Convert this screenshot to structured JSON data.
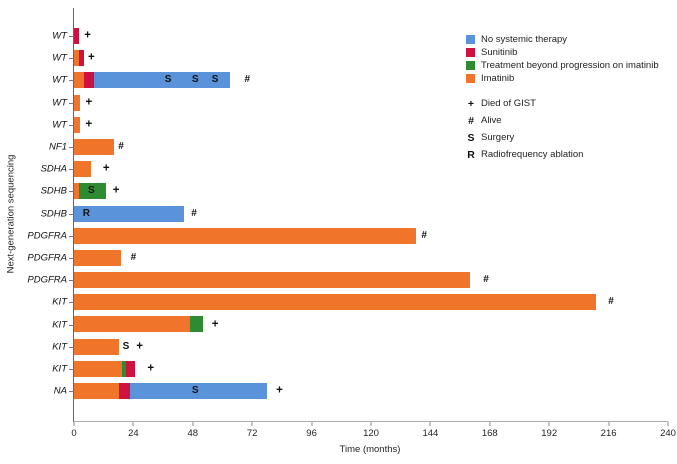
{
  "chart_data": {
    "type": "bar",
    "orientation": "horizontal_stacked_swimmer",
    "xlabel": "Time (months)",
    "ylabel": "Next-generation sequencing",
    "xlim": [
      0,
      240
    ],
    "xticks": [
      0,
      24,
      48,
      72,
      96,
      120,
      144,
      168,
      192,
      216,
      240
    ],
    "grid": false,
    "legend_position": "upper right",
    "colors": {
      "No systemic therapy": "#5B93DB",
      "Sunitinib": "#CF1240",
      "Treatment beyond progression on imatinib": "#2E8B32",
      "Imatinib": "#F0752B"
    },
    "rows": [
      {
        "label": "WT",
        "segments": [
          {
            "therapy": "Sunitinib",
            "start": 0,
            "end": 2
          }
        ],
        "markers": [
          {
            "symbol": "+",
            "month": 5.5
          }
        ]
      },
      {
        "label": "WT",
        "segments": [
          {
            "therapy": "Imatinib",
            "start": 0,
            "end": 2
          },
          {
            "therapy": "Sunitinib",
            "start": 2,
            "end": 4
          }
        ],
        "markers": [
          {
            "symbol": "+",
            "month": 7
          }
        ]
      },
      {
        "label": "WT",
        "segments": [
          {
            "therapy": "Imatinib",
            "start": 0,
            "end": 4
          },
          {
            "therapy": "Sunitinib",
            "start": 4,
            "end": 8
          },
          {
            "therapy": "No systemic therapy",
            "start": 8,
            "end": 63
          }
        ],
        "markers": [
          {
            "symbol": "S",
            "month": 38
          },
          {
            "symbol": "S",
            "month": 49
          },
          {
            "symbol": "S",
            "month": 57
          },
          {
            "symbol": "#",
            "month": 70
          }
        ]
      },
      {
        "label": "WT",
        "segments": [
          {
            "therapy": "Imatinib",
            "start": 0,
            "end": 2.5
          }
        ],
        "markers": [
          {
            "symbol": "+",
            "month": 6
          }
        ]
      },
      {
        "label": "WT",
        "segments": [
          {
            "therapy": "Imatinib",
            "start": 0,
            "end": 2.5
          }
        ],
        "markers": [
          {
            "symbol": "+",
            "month": 6
          }
        ]
      },
      {
        "label": "NF1",
        "segments": [
          {
            "therapy": "Imatinib",
            "start": 0,
            "end": 16
          }
        ],
        "markers": [
          {
            "symbol": "#",
            "month": 19
          }
        ]
      },
      {
        "label": "SDHA",
        "segments": [
          {
            "therapy": "Imatinib",
            "start": 0,
            "end": 7
          }
        ],
        "markers": [
          {
            "symbol": "+",
            "month": 13
          }
        ]
      },
      {
        "label": "SDHB",
        "segments": [
          {
            "therapy": "Imatinib",
            "start": 0,
            "end": 2
          },
          {
            "therapy": "Treatment beyond progression on imatinib",
            "start": 2,
            "end": 13
          }
        ],
        "markers": [
          {
            "symbol": "S",
            "month": 7
          },
          {
            "symbol": "+",
            "month": 17
          }
        ]
      },
      {
        "label": "SDHB",
        "segments": [
          {
            "therapy": "No systemic therapy",
            "start": 0,
            "end": 44.5
          }
        ],
        "markers": [
          {
            "symbol": "R",
            "month": 5
          },
          {
            "symbol": "#",
            "month": 48.5
          }
        ]
      },
      {
        "label": "PDGFRA",
        "segments": [
          {
            "therapy": "Imatinib",
            "start": 0,
            "end": 138
          }
        ],
        "markers": [
          {
            "symbol": "#",
            "month": 141.5
          }
        ]
      },
      {
        "label": "PDGFRA",
        "segments": [
          {
            "therapy": "Imatinib",
            "start": 0,
            "end": 19
          }
        ],
        "markers": [
          {
            "symbol": "#",
            "month": 24
          }
        ]
      },
      {
        "label": "PDGFRA",
        "segments": [
          {
            "therapy": "Imatinib",
            "start": 0,
            "end": 160
          }
        ],
        "markers": [
          {
            "symbol": "#",
            "month": 166.5
          }
        ]
      },
      {
        "label": "KIT",
        "segments": [
          {
            "therapy": "Imatinib",
            "start": 0,
            "end": 211
          }
        ],
        "markers": [
          {
            "symbol": "#",
            "month": 217
          }
        ]
      },
      {
        "label": "KIT",
        "segments": [
          {
            "therapy": "Imatinib",
            "start": 0,
            "end": 47
          },
          {
            "therapy": "Treatment beyond progression on imatinib",
            "start": 47,
            "end": 52
          }
        ],
        "markers": [
          {
            "symbol": "+",
            "month": 57
          }
        ]
      },
      {
        "label": "KIT",
        "segments": [
          {
            "therapy": "Imatinib",
            "start": 0,
            "end": 18
          }
        ],
        "markers": [
          {
            "symbol": "S",
            "month": 21
          },
          {
            "symbol": "+",
            "month": 26.5
          }
        ]
      },
      {
        "label": "KIT",
        "segments": [
          {
            "therapy": "Imatinib",
            "start": 0,
            "end": 19.5
          },
          {
            "therapy": "Treatment beyond progression on imatinib",
            "start": 19.5,
            "end": 21
          },
          {
            "therapy": "Sunitinib",
            "start": 21,
            "end": 24.5
          }
        ],
        "markers": [
          {
            "symbol": "+",
            "month": 31
          }
        ]
      },
      {
        "label": "NA",
        "segments": [
          {
            "therapy": "Imatinib",
            "start": 0,
            "end": 18
          },
          {
            "therapy": "Sunitinib",
            "start": 18,
            "end": 22.5
          },
          {
            "therapy": "No systemic therapy",
            "start": 22.5,
            "end": 78
          }
        ],
        "markers": [
          {
            "symbol": "S",
            "month": 49
          },
          {
            "symbol": "+",
            "month": 83
          }
        ]
      }
    ],
    "legend": {
      "therapies": [
        {
          "label": "No systemic therapy",
          "color": "#5B93DB"
        },
        {
          "label": "Sunitinib",
          "color": "#CF1240"
        },
        {
          "label": "Treatment beyond progression on imatinib",
          "color": "#2E8B32"
        },
        {
          "label": "Imatinib",
          "color": "#F0752B"
        }
      ],
      "markers": [
        {
          "symbol": "+",
          "label": "Died of GIST"
        },
        {
          "symbol": "#",
          "label": "Alive"
        },
        {
          "symbol": "S",
          "label": "Surgery"
        },
        {
          "symbol": "R",
          "label": "Radiofrequency ablation"
        }
      ]
    }
  }
}
